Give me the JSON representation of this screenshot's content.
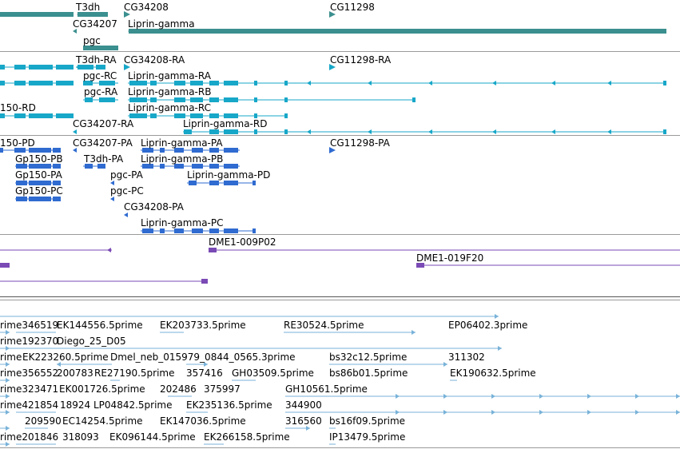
{
  "colors": {
    "gene": "#3b8f8f",
    "transcript": "#17a7c8",
    "protein": "#2f6bd0",
    "clone": "#7a4ab5",
    "est": "#78b2d8",
    "separator": "#9a9a9a"
  },
  "tracks": {
    "genes": {
      "labels": [
        "T3dh",
        "CG34208",
        "CG11298",
        "CG34207",
        "Liprin-gamma",
        "pgc"
      ]
    },
    "transcripts": {
      "labels": [
        "T3dh-RA",
        "CG34208-RA",
        "CG11298-RA",
        "pgc-RC",
        "Liprin-gamma-RA",
        "pgc-RA",
        "Liprin-gamma-RB",
        "150-RD",
        "Liprin-gamma-RC",
        "CG34207-RA",
        "Liprin-gamma-RD"
      ]
    },
    "proteins": {
      "labels": [
        "150-PD",
        "CG34207-PA",
        "Liprin-gamma-PA",
        "CG11298-PA",
        "Gp150-PB",
        "T3dh-PA",
        "Liprin-gamma-PB",
        "Gp150-PA",
        "pgc-PA",
        "Liprin-gamma-PD",
        "Gp150-PC",
        "pgc-PC",
        "CG34208-PA",
        "Liprin-gamma-PC"
      ]
    },
    "clones": {
      "labels": [
        "DME1-009P02",
        "DME1-019F20"
      ]
    },
    "ests": {
      "labels": [
        "rime346519",
        "EK144556.5prime",
        "EK203733.5prime",
        "RE30524.5prime",
        "EP06402.3prime",
        "rime192370",
        "Diego_25_D05",
        "rime",
        "EK223260.5prime",
        "Dmel_neb_015979_0844_0565.3prime",
        "bs32c12.5prime",
        "311302",
        "rime356552",
        "200783",
        "RE27190.5prime",
        "357416",
        "GH03509.5prime",
        "bs86b01.5prime",
        "EK190632.5prime",
        "rime323471",
        "EK001726.5prime",
        "202486",
        "375997",
        "GH10561.5prime",
        "rime421854",
        "18924",
        "LP04842.5prime",
        "EK235136.5prime",
        "344900",
        "209590",
        "EC14254.5prime",
        "EK147036.5prime",
        "316560",
        "bs16f09.5prime",
        "rime201846",
        "318093",
        "EK096144.5prime",
        "EK266158.5prime",
        "IP13479.5prime"
      ]
    }
  }
}
